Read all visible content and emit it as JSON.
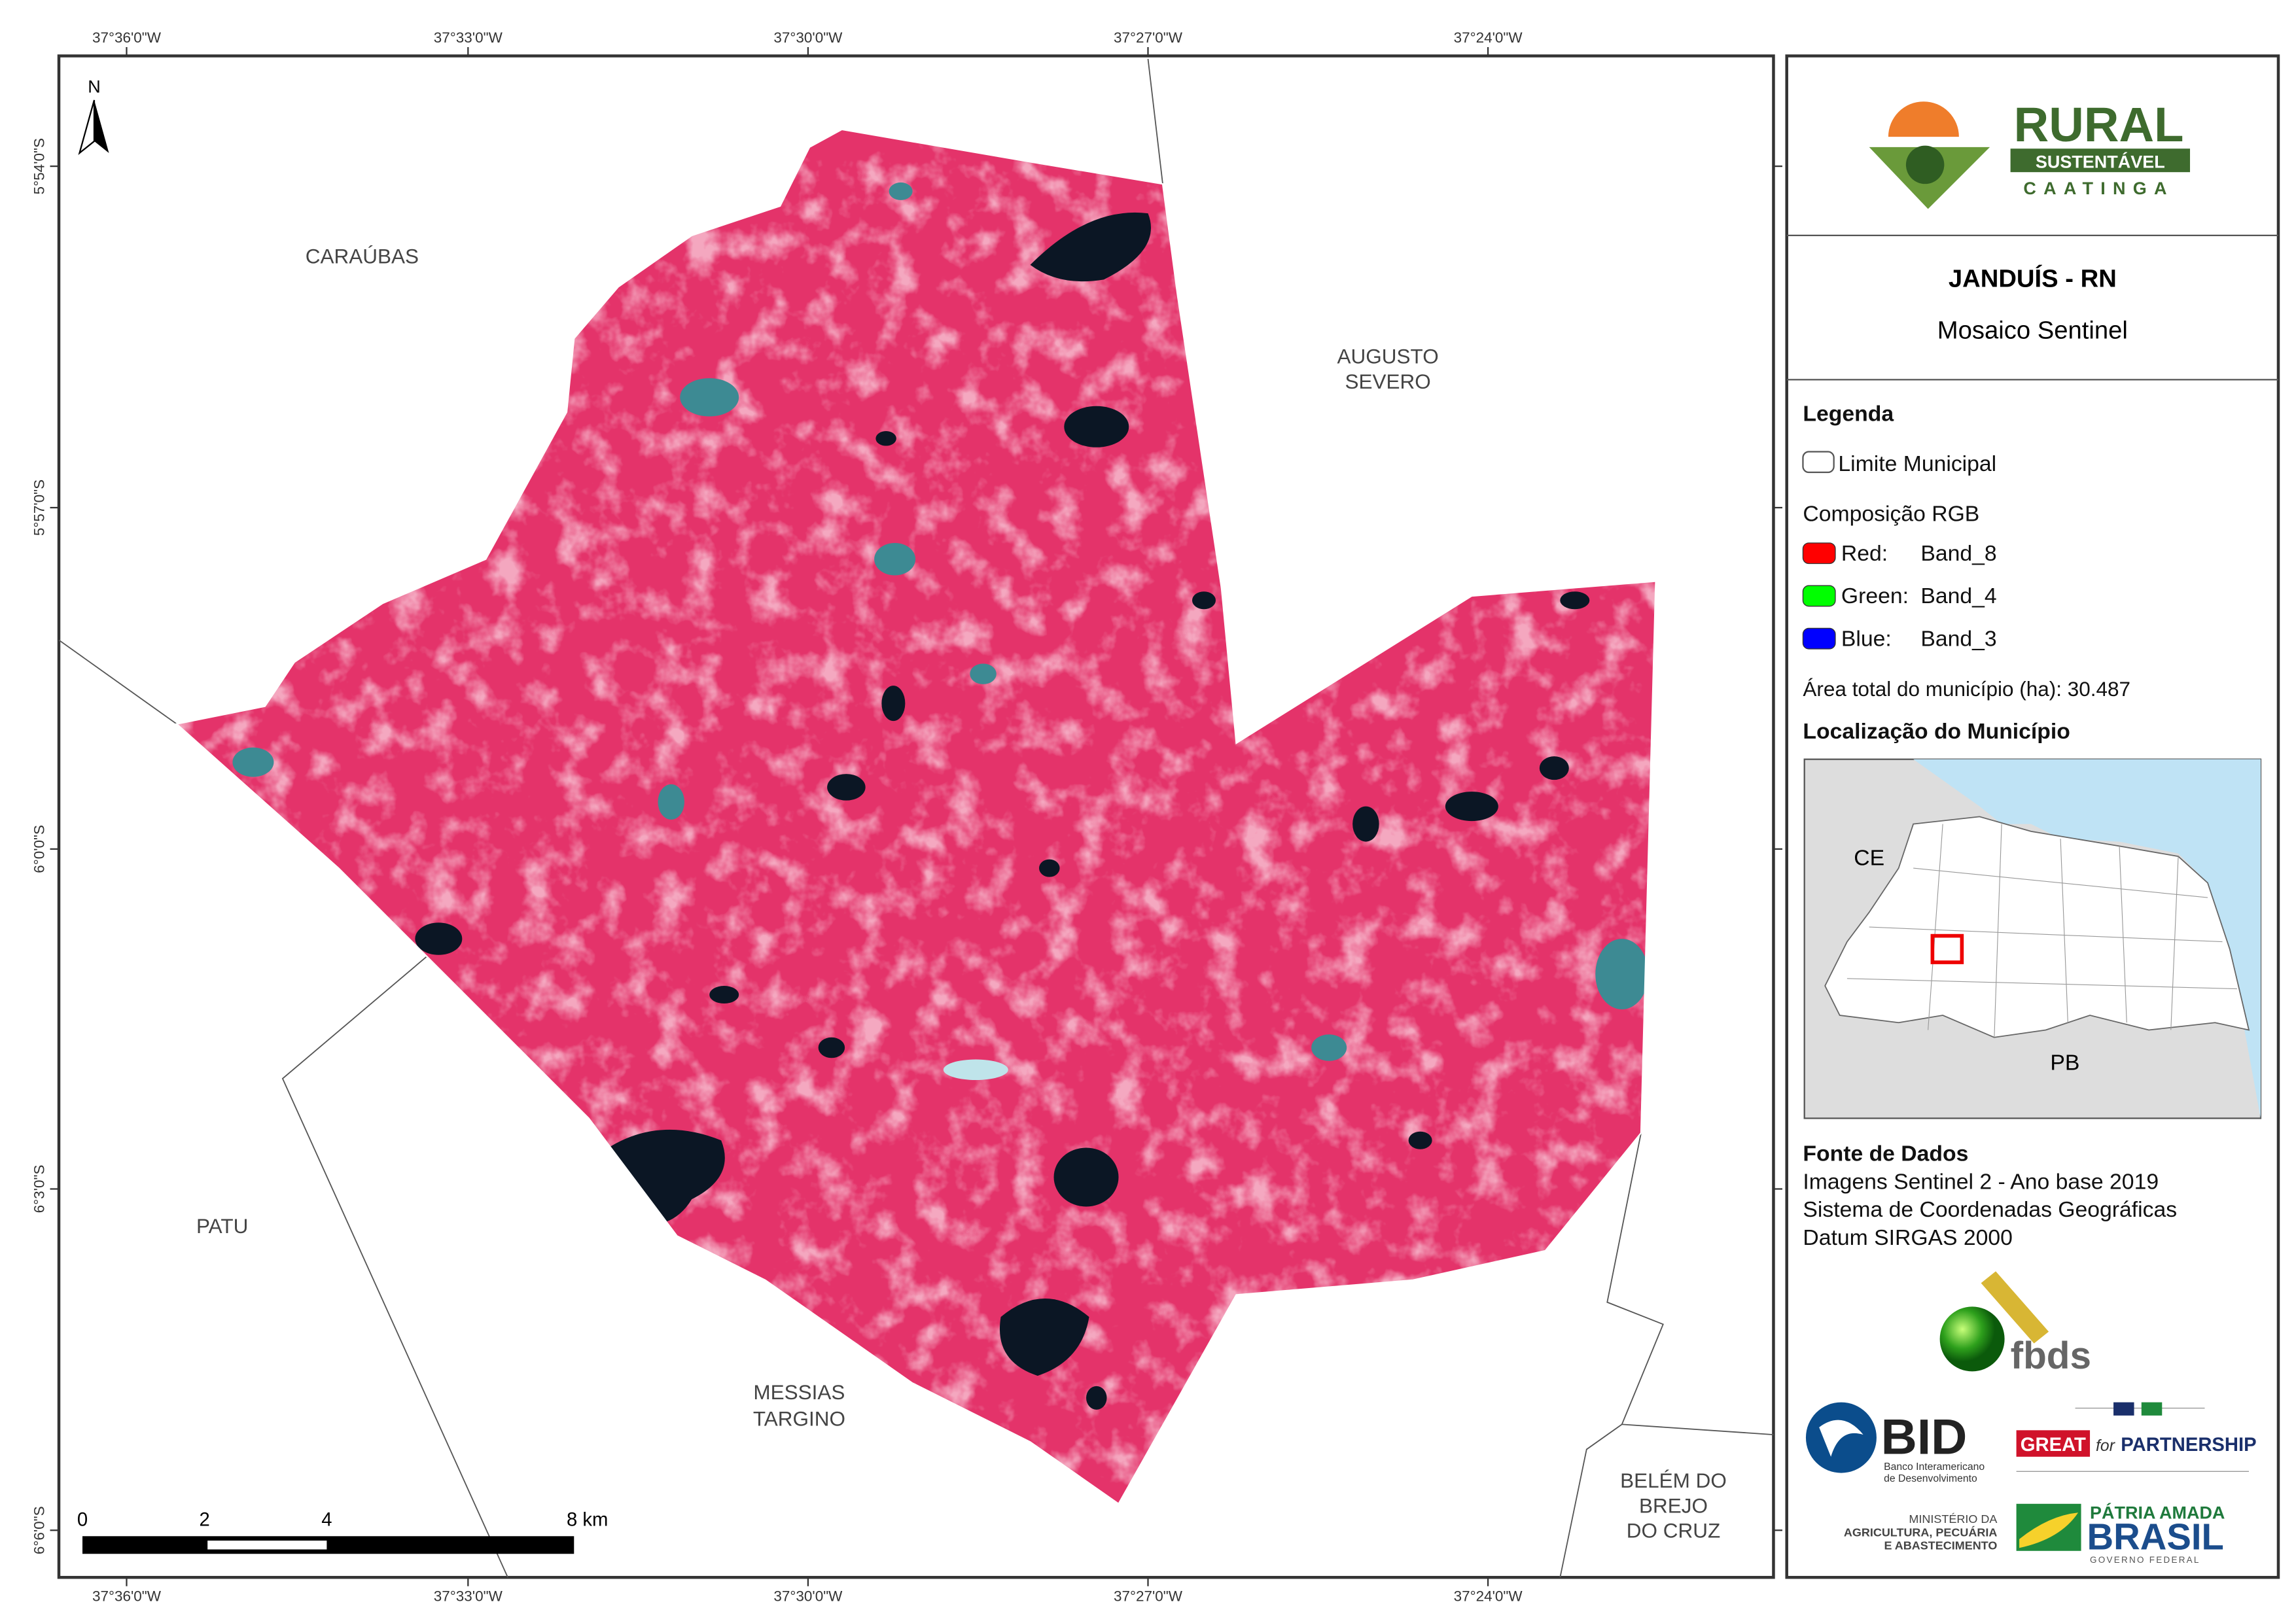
{
  "map": {
    "north": "N",
    "longitude_labels": [
      "37°36'0\"W",
      "37°33'0\"W",
      "37°30'0\"W",
      "37°27'0\"W",
      "37°24'0\"W"
    ],
    "latitude_labels": [
      "5°54'0\"S",
      "5°57'0\"S",
      "6°0'0\"S",
      "6°3'0\"S",
      "6°6'0\"S"
    ],
    "places": [
      {
        "lines": [
          "CARAÚBAS"
        ]
      },
      {
        "lines": [
          "AUGUSTO",
          "SEVERO"
        ]
      },
      {
        "lines": [
          "PATU"
        ]
      },
      {
        "lines": [
          "MESSIAS",
          "TARGINO"
        ]
      },
      {
        "lines": [
          "BELÉM DO",
          "BREJO",
          "DO CRUZ"
        ]
      }
    ],
    "scale_bar": [
      "0",
      "2",
      "4",
      "8 km"
    ]
  },
  "header": {
    "title": "JANDUÍS - RN",
    "subtitle": "Mosaico Sentinel"
  },
  "legend": {
    "heading": "Legenda",
    "boundary": "Limite Municipal",
    "composition": "Composição RGB",
    "bands": [
      {
        "channel": "Red:",
        "band": "Band_8",
        "color": "#ff0000"
      },
      {
        "channel": "Green:",
        "band": "Band_4",
        "color": "#00ff00"
      },
      {
        "channel": "Blue:",
        "band": "Band_3",
        "color": "#0000ff"
      }
    ],
    "area": "Área total do município (ha): 30.487",
    "location": "Localização do Município",
    "inset_labels": [
      "CE",
      "PB"
    ]
  },
  "sources": {
    "heading": "Fonte de Dados",
    "lines": [
      "Imagens Sentinel 2 - Ano base 2019",
      "Sistema de Coordenadas Geográficas",
      "Datum SIRGAS 2000"
    ]
  },
  "logos": {
    "rural": [
      "RURAL",
      "SUSTENTÁVEL",
      "CAATINGA"
    ],
    "fbds": "fbds",
    "bid": [
      "BID",
      "Banco Interamericano",
      "de Desenvolvimento"
    ],
    "great": [
      "GREAT",
      "for",
      "PARTNERSHIP"
    ],
    "ministry": [
      "MINISTÉRIO DA",
      "AGRICULTURA, PECUÁRIA",
      "E ABASTECIMENTO"
    ],
    "brasil": [
      "PÁTRIA AMADA",
      "BRASIL",
      "GOVERNO FEDERAL"
    ]
  }
}
